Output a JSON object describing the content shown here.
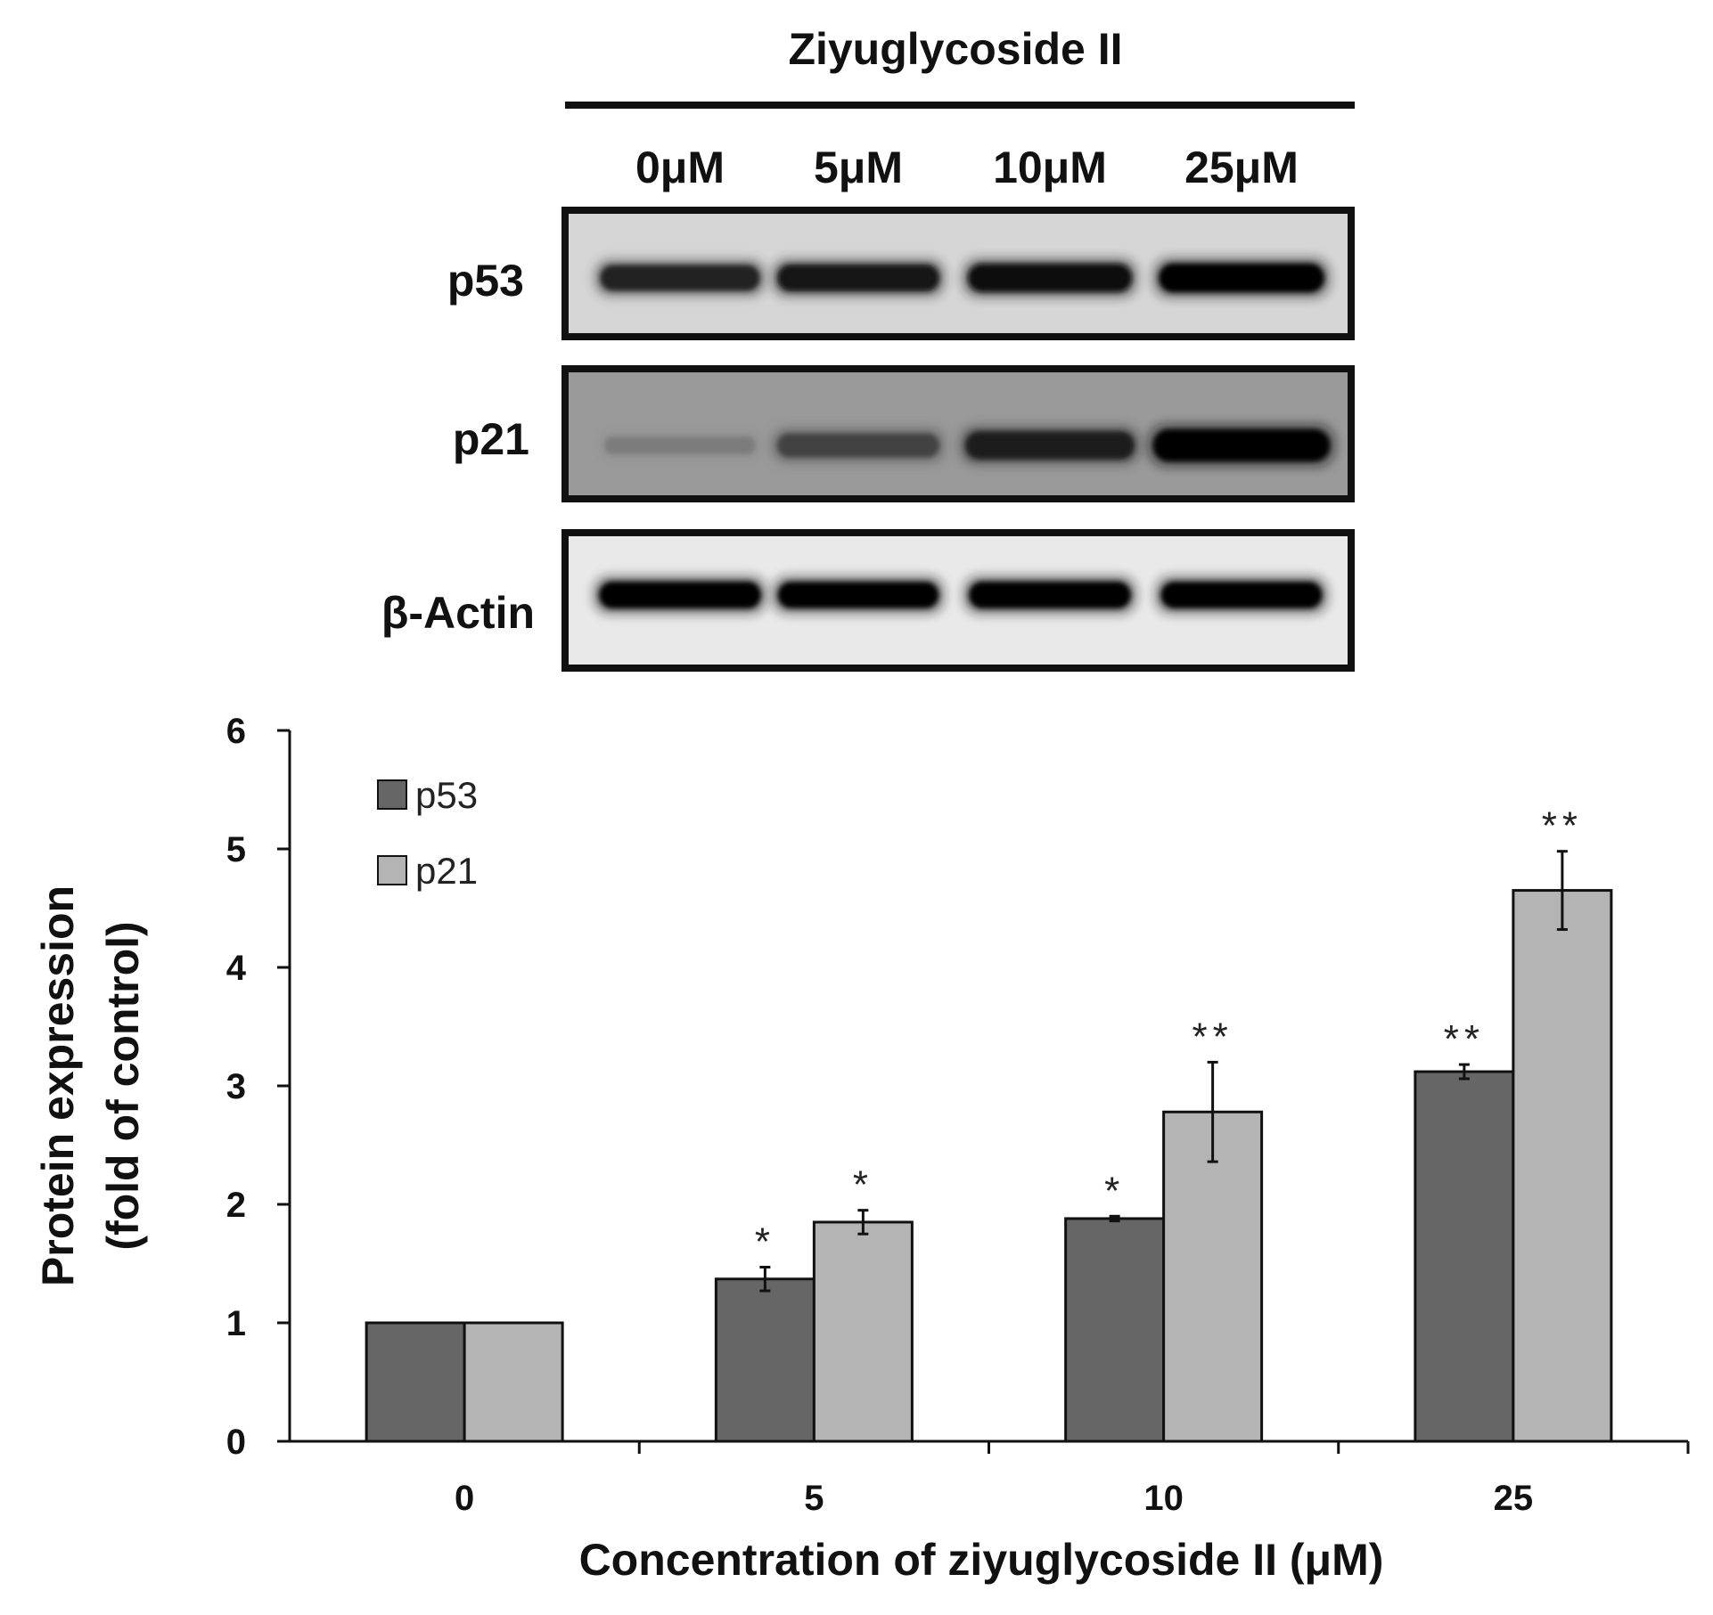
{
  "blot": {
    "title": "Ziyuglycoside II",
    "lanes": [
      "0μM",
      "5μM",
      "10μM",
      "25μM"
    ],
    "rows": [
      {
        "label": "p53",
        "intensity": [
          0.78,
          0.85,
          0.9,
          0.95
        ],
        "background": "#d6d6d6"
      },
      {
        "label": "p21",
        "intensity": [
          0.3,
          0.6,
          0.8,
          1.0
        ],
        "background": "#9a9a9a"
      },
      {
        "label": "β-Actin",
        "intensity": [
          0.95,
          0.92,
          0.95,
          0.93
        ],
        "background": "#e9e9e9"
      }
    ]
  },
  "chart_data": {
    "type": "bar",
    "categories": [
      "0",
      "5",
      "10",
      "25"
    ],
    "xlabel": "Concentration of ziyuglycoside II (μM)",
    "ylabel_line1": "Protein expression",
    "ylabel_line2": "(fold of control)",
    "ylim": [
      0,
      6
    ],
    "yticks": [
      "0",
      "1",
      "2",
      "3",
      "4",
      "5",
      "6"
    ],
    "legend_position": "top-left",
    "series": [
      {
        "name": "p53",
        "color": "#666666",
        "values": [
          1.0,
          1.37,
          1.88,
          3.12
        ],
        "errors": [
          0,
          0.1,
          0.02,
          0.06
        ],
        "significance": [
          "",
          "*",
          "*",
          "**"
        ]
      },
      {
        "name": "p21",
        "color": "#b4b4b4",
        "values": [
          1.0,
          1.85,
          2.78,
          4.65
        ],
        "errors": [
          0,
          0.1,
          0.42,
          0.33
        ],
        "significance": [
          "",
          "*",
          "**",
          "**"
        ]
      }
    ]
  }
}
